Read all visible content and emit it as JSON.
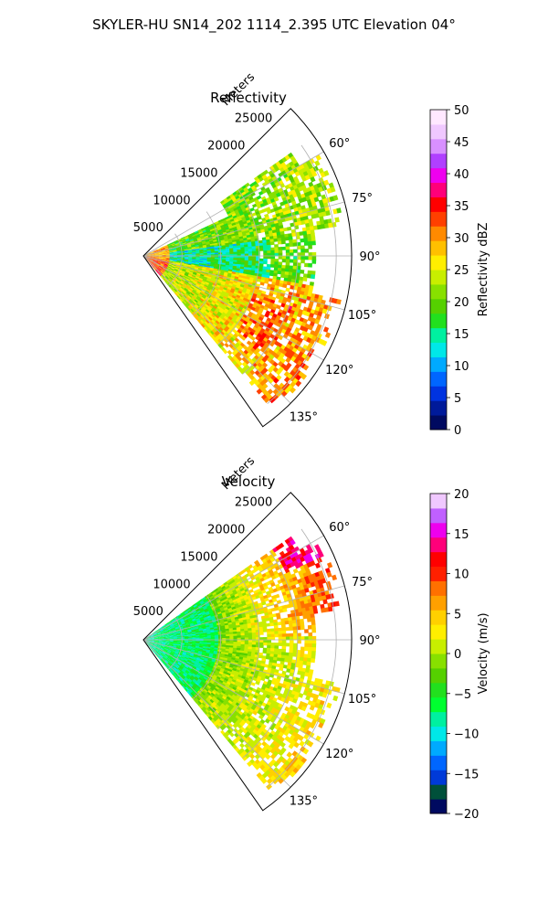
{
  "figure": {
    "title": "SKYLER-HU  SN14_202  1114_2.395 UTC Elevation 04°"
  },
  "chart_data": [
    {
      "type": "heatmap",
      "subtype": "polar-sector (radar PPI)",
      "title": "Reflectivity",
      "range_label": "Meters",
      "range_ticks": [
        "5000",
        "10000",
        "15000",
        "20000",
        "25000"
      ],
      "range_max_m": 27000,
      "azimuth_ticks": [
        "60°",
        "75°",
        "90°",
        "105°",
        "120°",
        "135°"
      ],
      "azimuth_span_deg": [
        55,
        140
      ],
      "grid": true,
      "colorbar": {
        "label": "Reflectivity dBZ",
        "min": 0,
        "max": 50,
        "ticks": [
          "0",
          "5",
          "10",
          "15",
          "20",
          "25",
          "30",
          "35",
          "40",
          "45",
          "50"
        ],
        "colors": [
          "#000a60",
          "#001a9a",
          "#0033e0",
          "#0066ff",
          "#00aaff",
          "#00e8e8",
          "#00f0a0",
          "#22e01e",
          "#55d000",
          "#88e000",
          "#c8ee00",
          "#ffee00",
          "#ffc000",
          "#ff8a00",
          "#ff4000",
          "#ff0000",
          "#ff007a",
          "#ee00ee",
          "#b040ff",
          "#d890ff",
          "#f0c8ff",
          "#ffe8ff"
        ]
      },
      "field_pattern": [
        {
          "az_from": 55,
          "az_to": 80,
          "r_from": 0.1,
          "r_to": 0.95,
          "value": 20
        },
        {
          "az_from": 80,
          "az_to": 100,
          "r_from": 0.1,
          "r_to": 0.55,
          "value": 14
        },
        {
          "az_from": 100,
          "az_to": 140,
          "r_from": 0.15,
          "r_to": 0.9,
          "value": 27
        },
        {
          "az_from": 55,
          "az_to": 140,
          "r_from": 0.0,
          "r_to": 0.12,
          "value": 33
        }
      ]
    },
    {
      "type": "heatmap",
      "subtype": "polar-sector (radar PPI)",
      "title": "Velocity",
      "range_label": "Meters",
      "range_ticks": [
        "5000",
        "10000",
        "15000",
        "20000",
        "25000"
      ],
      "range_max_m": 27000,
      "azimuth_ticks": [
        "60°",
        "75°",
        "90°",
        "105°",
        "120°",
        "135°"
      ],
      "azimuth_span_deg": [
        55,
        140
      ],
      "grid": true,
      "colorbar": {
        "label": "Velocity (m/s)",
        "min": -20,
        "max": 20,
        "ticks": [
          "−20",
          "−15",
          "−10",
          "−5",
          "0",
          "5",
          "10",
          "15",
          "20"
        ],
        "colors": [
          "#000a60",
          "#00503a",
          "#003ad8",
          "#0066ff",
          "#00aaff",
          "#00e8e8",
          "#00f0a0",
          "#00ff30",
          "#22e01e",
          "#55d000",
          "#88e000",
          "#c8ee00",
          "#ffee00",
          "#ffd000",
          "#ffa000",
          "#ff7000",
          "#ff2000",
          "#ff0000",
          "#ff007a",
          "#ee00ee",
          "#c060ff",
          "#f0c8ff"
        ]
      },
      "field_pattern": [
        {
          "az_from": 55,
          "az_to": 85,
          "r_from": 0.45,
          "r_to": 0.95,
          "value": 9
        },
        {
          "az_from": 85,
          "az_to": 140,
          "r_from": 0.45,
          "r_to": 0.95,
          "value": 2
        },
        {
          "az_from": 55,
          "az_to": 140,
          "r_from": 0.0,
          "r_to": 0.45,
          "value": -7
        }
      ]
    }
  ]
}
